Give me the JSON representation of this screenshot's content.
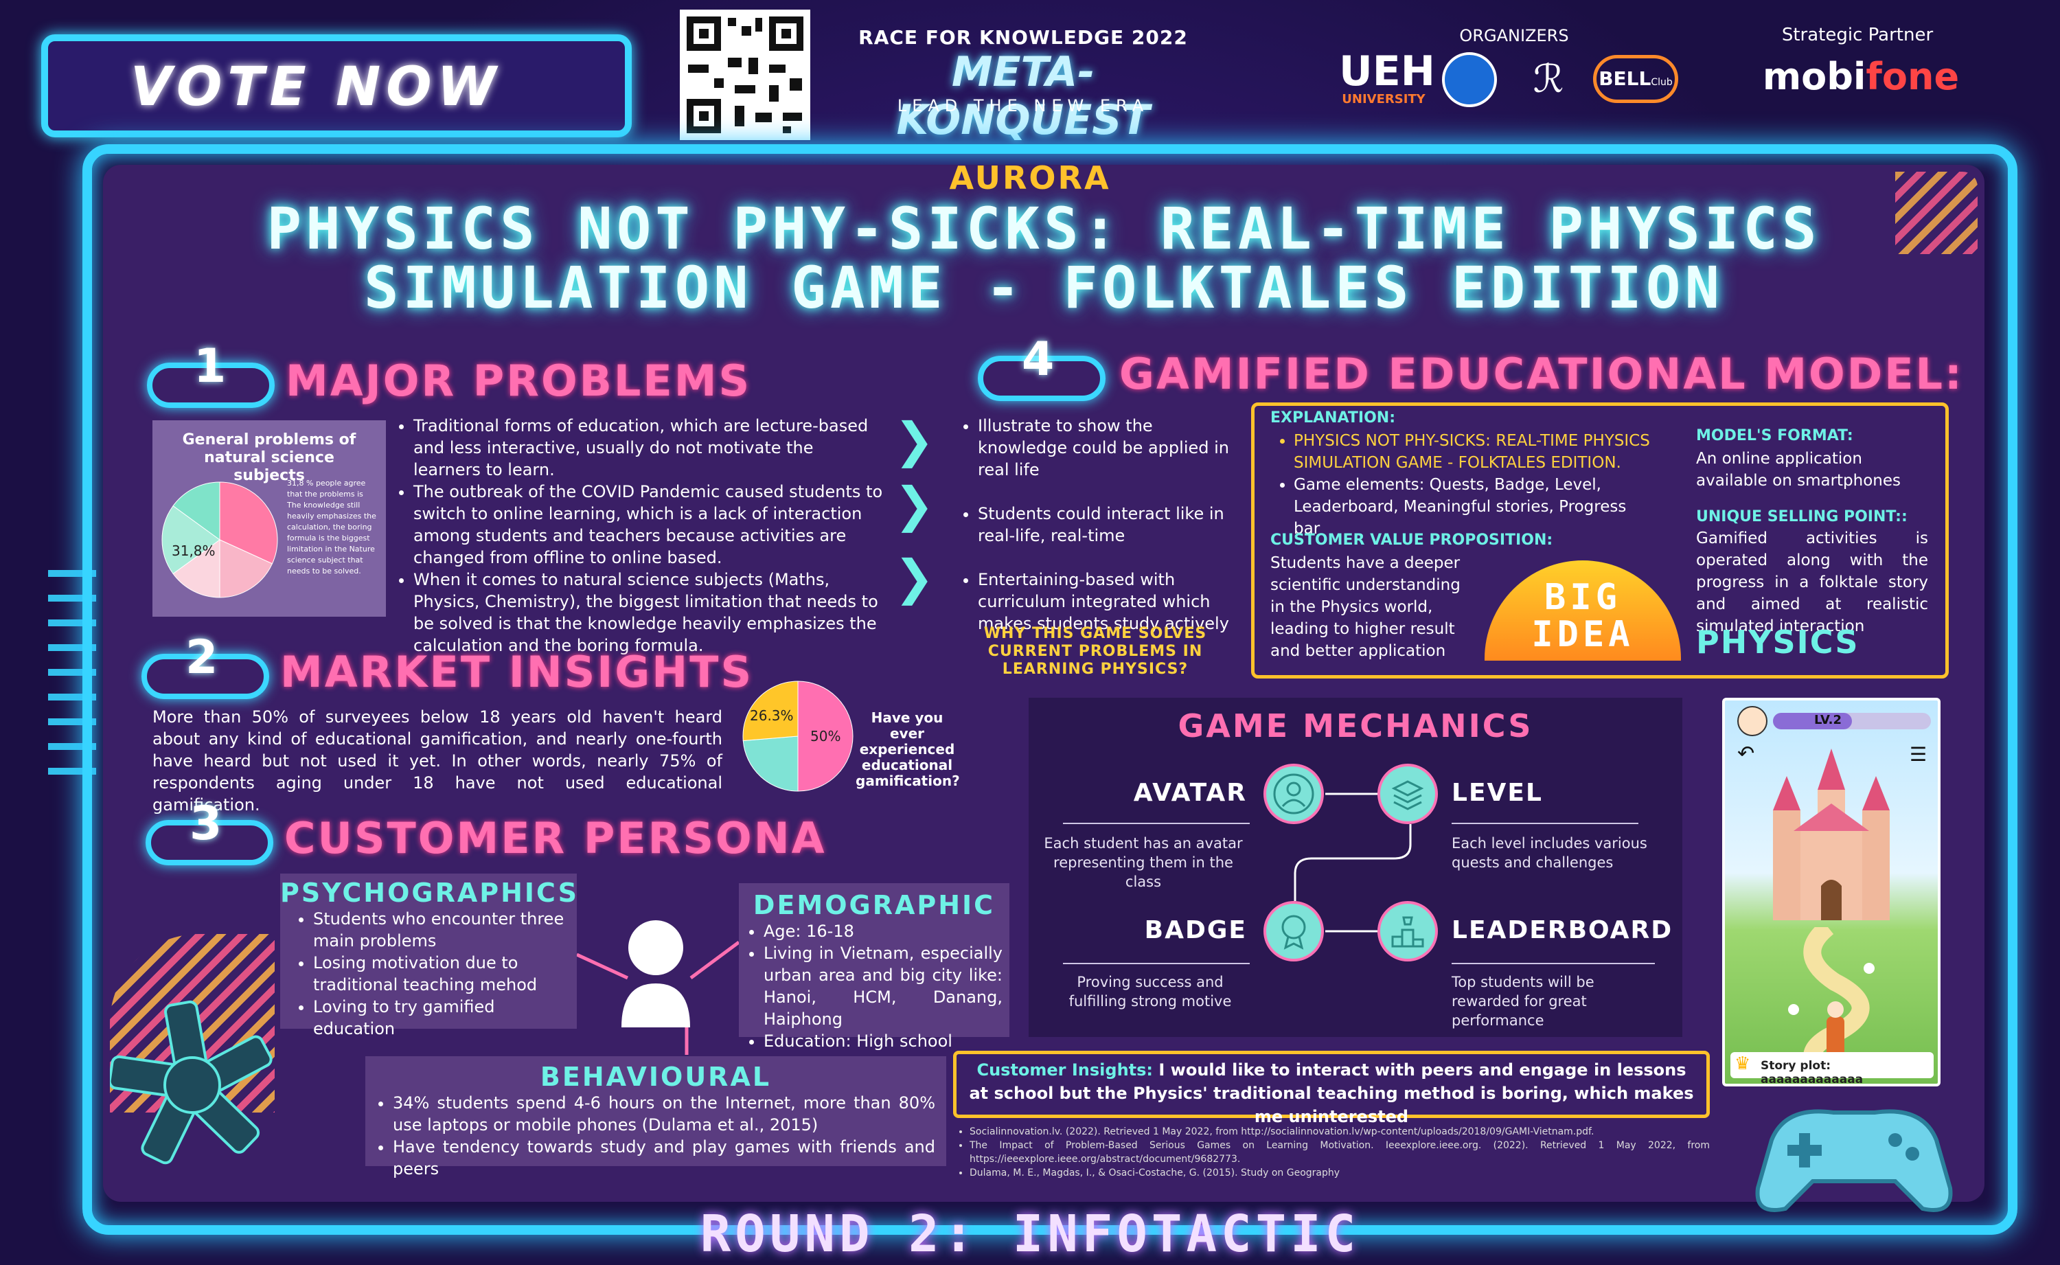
{
  "header": {
    "vote_now": "VOTE NOW",
    "race_title": "RACE FOR KNOWLEDGE 2022",
    "event_name": "META-KONQUEST",
    "event_tagline": "LEAD THE NEW ERA",
    "organizers_label": "ORGANIZERS",
    "organizer_ueh": "UEH",
    "organizer_ueh_sub": "UNIVERSITY",
    "organizer_bell": "BELL",
    "organizer_bell_sub": "Club",
    "partner_label": "Strategic Partner",
    "partner_name_a": "mobi",
    "partner_name_b": "fone"
  },
  "team": "AURORA",
  "title_line1": "PHYSICS NOT PHY-SICKS: REAL-TIME PHYSICS",
  "title_line2": "SIMULATION GAME - FOLKTALES EDITION",
  "section1": {
    "number": "1",
    "heading": "MAJOR PROBLEMS",
    "chart_title": "General problems of natural science subjects",
    "pie_label": "31,8%",
    "chart_note": "31,8 % people agree that the problems is The knowledge still heavily emphasizes the calculation, the boring formula is the biggest limitation in the Nature science subject that needs to be solved.",
    "bullets": [
      "Traditional forms of education, which are lecture-based and less interactive, usually do not motivate the learners to learn.",
      "The outbreak of the COVID Pandemic caused students to switch to online learning, which is a lack of interaction among students and teachers because activities are changed from offline to online based.",
      "When it comes to natural science subjects (Maths, Physics, Chemistry), the biggest limitation that needs to be solved is that the knowledge heavily emphasizes the calculation and the boring formula."
    ]
  },
  "solutions": {
    "items": [
      "Illustrate to show the knowledge could be applied in real life",
      "Students could interact like in real-life, real-time",
      "Entertaining-based with curriculum integrated which makes students study actively"
    ],
    "caption": "WHY THIS GAME SOLVES CURRENT PROBLEMS IN LEARNING PHYSICS?"
  },
  "section2": {
    "number": "2",
    "heading": "MARKET INSIGHTS",
    "text": "More than 50% of surveyees below 18 years old haven't heard about any kind of educational gamification, and nearly one-fourth have heard but not used it yet. In other words, nearly 75% of respondents aging under 18 have not used educational gamification.",
    "pie_question": "Have you ever experienced educational gamification?"
  },
  "section3": {
    "number": "3",
    "heading": "CUSTOMER PERSONA",
    "psychographics": {
      "title": "PSYCHOGRAPHICS",
      "items": [
        "Students who encounter three main problems",
        "Losing motivation due to traditional teaching mehod",
        "Loving to try gamified education"
      ]
    },
    "demographic": {
      "title": "DEMOGRAPHIC",
      "items": [
        "Age: 16-18",
        "Living in Vietnam, especially urban area and big city like: Hanoi, HCM, Danang, Haiphong",
        "Education: High school"
      ]
    },
    "behavioural": {
      "title": "BEHAVIOURAL",
      "items": [
        "34% students spend 4-6 hours on the Internet, more than 80% use laptops or mobile phones (Dulama et al., 2015)",
        "Have tendency towards study and play games with friends and peers"
      ]
    }
  },
  "section4": {
    "number": "4",
    "heading": "GAMIFIED EDUCATIONAL MODEL:",
    "explanation_label": "EXPLANATION:",
    "explanation_items": [
      "PHYSICS NOT PHY-SICKS: REAL-TIME PHYSICS SIMULATION GAME - FOLKTALES EDITION.",
      "Game elements: Quests, Badge, Level, Leaderboard, Meaningful stories, Progress bar"
    ],
    "cvp_label": "CUSTOMER VALUE PROPOSITION:",
    "cvp_text": "Students have a deeper scientific understanding in the Physics world, leading to higher result and better application",
    "format_label": "MODEL'S FORMAT:",
    "format_text": "An online application available on smartphones",
    "usp_label": "UNIQUE SELLING POINT::",
    "usp_text": "Gamified activities is operated along with the progress in a folktale story and aimed at realistic simulated interaction",
    "big_idea_1": "BIG",
    "big_idea_2": "IDEA",
    "physics_word": "PHYSICS"
  },
  "mechanics": {
    "title": "GAME MECHANICS",
    "avatar": {
      "name": "AVATAR",
      "desc": "Each student has an avatar representing them in the class"
    },
    "level": {
      "name": "LEVEL",
      "desc": "Each level includes various quests and challenges"
    },
    "badge": {
      "name": "BADGE",
      "desc": "Proving success and fulfilling strong motive"
    },
    "leaderboard": {
      "name": "LEADERBOARD",
      "desc": "Top students will be rewarded for great performance"
    }
  },
  "phone": {
    "level_label": "LV.2",
    "story_plot": "Story plot: aaaaaaaaaaaaa"
  },
  "insights": {
    "label": "Customer Insights:",
    "text": "I would like to interact with peers and engage in lessons at school but the Physics' traditional teaching method is boring, which makes me uninterested"
  },
  "references": [
    "Socialinnovation.lv. (2022). Retrieved 1 May 2022, from http://socialinnovation.lv/wp-content/uploads/2018/09/GAMI-Vietnam.pdf.",
    "The Impact of Problem-Based Serious Games on Learning Motivation. Ieeexplore.ieee.org. (2022). Retrieved 1 May 2022, from https://ieeexplore.ieee.org/abstract/document/9682773.",
    "Dulama, M. E., Magdas, I., & Osaci-Costache, G. (2015). Study on Geography"
  ],
  "footer": "ROUND 2: INFOTACTIC",
  "colors": {
    "pink": "#ff6fb1",
    "cyan": "#37d4ff",
    "yellow": "#ffd23f",
    "teal": "#6ef1e6"
  },
  "chart_data": [
    {
      "type": "pie",
      "title": "General problems of natural science subjects",
      "slices": [
        {
          "label": "31,8%",
          "value": 31.8,
          "color": "#ff7aa5"
        },
        {
          "label": "",
          "value": 18.2,
          "color": "#f9b6c8"
        },
        {
          "label": "",
          "value": 15.0,
          "color": "#fbd6df"
        },
        {
          "label": "",
          "value": 20.0,
          "color": "#a9ecd9"
        },
        {
          "label": "",
          "value": 15.0,
          "color": "#7fe3c9"
        }
      ]
    },
    {
      "type": "pie",
      "title": "Have you ever experienced educational gamification?",
      "slices": [
        {
          "label": "50%",
          "value": 50,
          "color": "#ff6fb1"
        },
        {
          "label": "",
          "value": 23.7,
          "color": "#7fe3d5"
        },
        {
          "label": "26.3%",
          "value": 26.3,
          "color": "#ffc629"
        }
      ]
    }
  ]
}
